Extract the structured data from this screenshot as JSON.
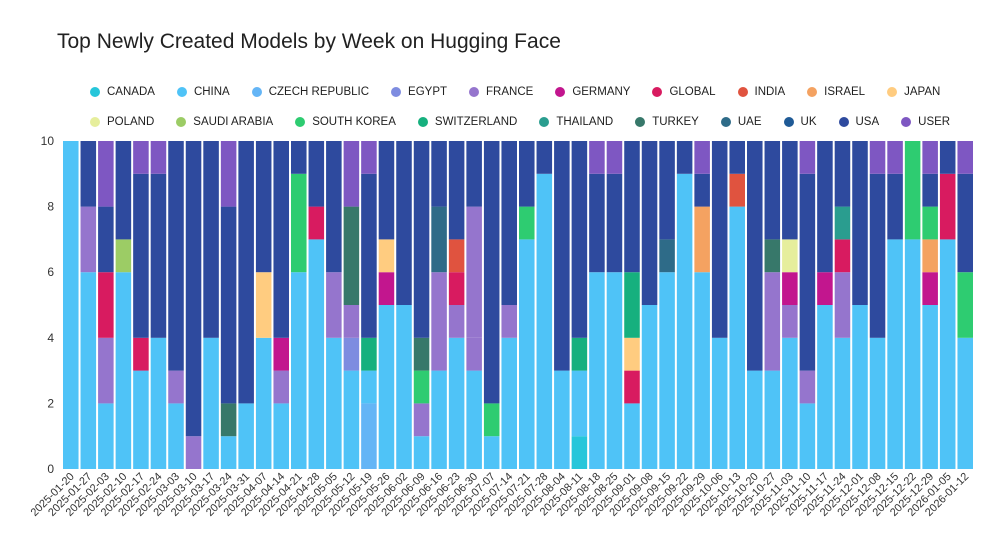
{
  "chart_data": {
    "type": "bar",
    "stacked": true,
    "title": "Top Newly Created Models by Week on Hugging Face",
    "xlabel": "",
    "ylabel": "",
    "ylim": [
      0,
      10
    ],
    "yticks": [
      "0",
      "2",
      "4",
      "6",
      "8",
      "10"
    ],
    "legend_position": "top",
    "legend": [
      {
        "name": "CANADA",
        "color": "#26C6DA"
      },
      {
        "name": "CHINA",
        "color": "#4FC3F7"
      },
      {
        "name": "CZECH REPUBLIC",
        "color": "#64B5F6"
      },
      {
        "name": "EGYPT",
        "color": "#7E8CE0"
      },
      {
        "name": "FRANCE",
        "color": "#9575CD"
      },
      {
        "name": "GERMANY",
        "color": "#C2168E"
      },
      {
        "name": "GLOBAL",
        "color": "#D81B60"
      },
      {
        "name": "INDIA",
        "color": "#E0533F"
      },
      {
        "name": "ISRAEL",
        "color": "#F4A261"
      },
      {
        "name": "JAPAN",
        "color": "#FFCC80"
      },
      {
        "name": "POLAND",
        "color": "#E6EE9C"
      },
      {
        "name": "SAUDI ARABIA",
        "color": "#9CCC65"
      },
      {
        "name": "SOUTH KOREA",
        "color": "#2ECC71"
      },
      {
        "name": "SWITZERLAND",
        "color": "#16B07E"
      },
      {
        "name": "THAILAND",
        "color": "#2A9D8F"
      },
      {
        "name": "TURKEY",
        "color": "#37786A"
      },
      {
        "name": "UAE",
        "color": "#2E6B88"
      },
      {
        "name": "UK",
        "color": "#1F5A96"
      },
      {
        "name": "USA",
        "color": "#2E4A9E"
      },
      {
        "name": "USER",
        "color": "#7E57C2"
      }
    ],
    "legend_rows": [
      10,
      10
    ],
    "categories": [
      "2025-01-20",
      "2025-01-27",
      "2025-02-03",
      "2025-02-10",
      "2025-02-17",
      "2025-02-24",
      "2025-03-03",
      "2025-03-10",
      "2025-03-17",
      "2025-03-24",
      "2025-03-31",
      "2025-04-07",
      "2025-04-14",
      "2025-04-21",
      "2025-04-28",
      "2025-05-05",
      "2025-05-12",
      "2025-05-19",
      "2025-05-26",
      "2025-06-02",
      "2025-06-09",
      "2025-06-16",
      "2025-06-23",
      "2025-06-30",
      "2025-07-07",
      "2025-07-14",
      "2025-07-21",
      "2025-07-28",
      "2025-08-04",
      "2025-08-11",
      "2025-08-18",
      "2025-08-25",
      "2025-09-01",
      "2025-09-08",
      "2025-09-15",
      "2025-09-22",
      "2025-09-29",
      "2025-10-06",
      "2025-10-13",
      "2025-10-20",
      "2025-10-27",
      "2025-11-03",
      "2025-11-10",
      "2025-11-17",
      "2025-11-24",
      "2025-12-01",
      "2025-12-08",
      "2025-12-15",
      "2025-12-22",
      "2025-12-29",
      "2026-01-05",
      "2026-01-12"
    ],
    "stacks": [
      [
        [
          "CHINA",
          10
        ]
      ],
      [
        [
          "CHINA",
          6
        ],
        [
          "FRANCE",
          2
        ],
        [
          "USA",
          2
        ]
      ],
      [
        [
          "CHINA",
          2
        ],
        [
          "FRANCE",
          2
        ],
        [
          "GLOBAL",
          2
        ],
        [
          "USA",
          2
        ],
        [
          "USER",
          2
        ]
      ],
      [
        [
          "CHINA",
          6
        ],
        [
          "SAUDI ARABIA",
          1
        ],
        [
          "USA",
          3
        ]
      ],
      [
        [
          "CHINA",
          3
        ],
        [
          "GLOBAL",
          1
        ],
        [
          "USA",
          5
        ],
        [
          "USER",
          1
        ]
      ],
      [
        [
          "CHINA",
          4
        ],
        [
          "USA",
          5
        ],
        [
          "USER",
          1
        ]
      ],
      [
        [
          "CHINA",
          2
        ],
        [
          "FRANCE",
          1
        ],
        [
          "USA",
          7
        ]
      ],
      [
        [
          "FRANCE",
          1
        ],
        [
          "USA",
          9
        ]
      ],
      [
        [
          "CHINA",
          4
        ],
        [
          "USA",
          6
        ]
      ],
      [
        [
          "CHINA",
          1
        ],
        [
          "TURKEY",
          1
        ],
        [
          "USA",
          6
        ],
        [
          "USER",
          2
        ]
      ],
      [
        [
          "CHINA",
          2
        ],
        [
          "USA",
          8
        ]
      ],
      [
        [
          "CHINA",
          4
        ],
        [
          "JAPAN",
          2
        ],
        [
          "USA",
          4
        ]
      ],
      [
        [
          "CHINA",
          2
        ],
        [
          "FRANCE",
          1
        ],
        [
          "GERMANY",
          1
        ],
        [
          "USA",
          6
        ]
      ],
      [
        [
          "CHINA",
          6
        ],
        [
          "SOUTH KOREA",
          3
        ],
        [
          "USA",
          1
        ]
      ],
      [
        [
          "CHINA",
          7
        ],
        [
          "GLOBAL",
          1
        ],
        [
          "USA",
          2
        ]
      ],
      [
        [
          "CHINA",
          4
        ],
        [
          "FRANCE",
          2
        ],
        [
          "USA",
          4
        ]
      ],
      [
        [
          "CHINA",
          3
        ],
        [
          "EGYPT",
          1
        ],
        [
          "FRANCE",
          1
        ],
        [
          "TURKEY",
          3
        ],
        [
          "USER",
          2
        ]
      ],
      [
        [
          "CZECH REPUBLIC",
          2
        ],
        [
          "CHINA",
          1
        ],
        [
          "SWITZERLAND",
          1
        ],
        [
          "USA",
          5
        ],
        [
          "USER",
          1
        ]
      ],
      [
        [
          "CHINA",
          5
        ],
        [
          "GERMANY",
          1
        ],
        [
          "JAPAN",
          1
        ],
        [
          "USA",
          3
        ]
      ],
      [
        [
          "CHINA",
          5
        ],
        [
          "USA",
          5
        ]
      ],
      [
        [
          "CHINA",
          1
        ],
        [
          "FRANCE",
          1
        ],
        [
          "SOUTH KOREA",
          1
        ],
        [
          "TURKEY",
          1
        ],
        [
          "USA",
          6
        ]
      ],
      [
        [
          "CHINA",
          3
        ],
        [
          "FRANCE",
          3
        ],
        [
          "UAE",
          2
        ],
        [
          "USA",
          2
        ]
      ],
      [
        [
          "CHINA",
          4
        ],
        [
          "FRANCE",
          1
        ],
        [
          "GLOBAL",
          1
        ],
        [
          "INDIA",
          1
        ],
        [
          "USA",
          3
        ]
      ],
      [
        [
          "CHINA",
          3
        ],
        [
          "FRANCE",
          1
        ],
        [
          "FRANCE",
          4
        ],
        [
          "USA",
          2
        ]
      ],
      [
        [
          "CHINA",
          1
        ],
        [
          "SOUTH KOREA",
          1
        ],
        [
          "USA",
          8
        ]
      ],
      [
        [
          "CHINA",
          4
        ],
        [
          "FRANCE",
          1
        ],
        [
          "USA",
          5
        ]
      ],
      [
        [
          "CHINA",
          7
        ],
        [
          "SOUTH KOREA",
          1
        ],
        [
          "USA",
          2
        ]
      ],
      [
        [
          "CHINA",
          9
        ],
        [
          "USA",
          1
        ]
      ],
      [
        [
          "CHINA",
          3
        ],
        [
          "USA",
          7
        ]
      ],
      [
        [
          "CANADA",
          1
        ],
        [
          "CHINA",
          2
        ],
        [
          "SWITZERLAND",
          1
        ],
        [
          "USA",
          6
        ]
      ],
      [
        [
          "CHINA",
          6
        ],
        [
          "USA",
          3
        ],
        [
          "USER",
          1
        ]
      ],
      [
        [
          "CHINA",
          6
        ],
        [
          "USA",
          3
        ],
        [
          "USER",
          1
        ]
      ],
      [
        [
          "CHINA",
          2
        ],
        [
          "GLOBAL",
          1
        ],
        [
          "JAPAN",
          1
        ],
        [
          "SWITZERLAND",
          2
        ],
        [
          "USA",
          4
        ]
      ],
      [
        [
          "CHINA",
          5
        ],
        [
          "USA",
          5
        ]
      ],
      [
        [
          "CHINA",
          6
        ],
        [
          "UAE",
          1
        ],
        [
          "USA",
          3
        ]
      ],
      [
        [
          "CHINA",
          9
        ],
        [
          "USA",
          1
        ]
      ],
      [
        [
          "CHINA",
          6
        ],
        [
          "ISRAEL",
          2
        ],
        [
          "USA",
          1
        ],
        [
          "USER",
          1
        ]
      ],
      [
        [
          "CHINA",
          4
        ],
        [
          "USA",
          6
        ]
      ],
      [
        [
          "CHINA",
          8
        ],
        [
          "INDIA",
          1
        ],
        [
          "USA",
          1
        ]
      ],
      [
        [
          "CHINA",
          3
        ],
        [
          "USA",
          7
        ]
      ],
      [
        [
          "CHINA",
          3
        ],
        [
          "FRANCE",
          3
        ],
        [
          "TURKEY",
          1
        ],
        [
          "USA",
          3
        ]
      ],
      [
        [
          "CHINA",
          4
        ],
        [
          "FRANCE",
          1
        ],
        [
          "GERMANY",
          1
        ],
        [
          "POLAND",
          1
        ],
        [
          "USA",
          3
        ]
      ],
      [
        [
          "CHINA",
          2
        ],
        [
          "FRANCE",
          1
        ],
        [
          "USA",
          6
        ],
        [
          "USER",
          1
        ]
      ],
      [
        [
          "CHINA",
          5
        ],
        [
          "GERMANY",
          1
        ],
        [
          "USA",
          4
        ]
      ],
      [
        [
          "CHINA",
          4
        ],
        [
          "FRANCE",
          2
        ],
        [
          "GLOBAL",
          1
        ],
        [
          "THAILAND",
          1
        ],
        [
          "USA",
          2
        ]
      ],
      [
        [
          "CHINA",
          5
        ],
        [
          "USA",
          5
        ]
      ],
      [
        [
          "CHINA",
          4
        ],
        [
          "USA",
          5
        ],
        [
          "USER",
          1
        ]
      ],
      [
        [
          "CHINA",
          7
        ],
        [
          "USA",
          2
        ],
        [
          "USER",
          1
        ]
      ],
      [
        [
          "CHINA",
          7
        ],
        [
          "SOUTH KOREA",
          3
        ]
      ],
      [
        [
          "CHINA",
          5
        ],
        [
          "GERMANY",
          1
        ],
        [
          "ISRAEL",
          1
        ],
        [
          "SOUTH KOREA",
          1
        ],
        [
          "USA",
          1
        ],
        [
          "USER",
          1
        ]
      ],
      [
        [
          "CHINA",
          7
        ],
        [
          "GLOBAL",
          2
        ],
        [
          "USA",
          1
        ]
      ],
      [
        [
          "CHINA",
          4
        ],
        [
          "SOUTH KOREA",
          2
        ],
        [
          "USA",
          3
        ],
        [
          "USER",
          1
        ]
      ]
    ]
  }
}
